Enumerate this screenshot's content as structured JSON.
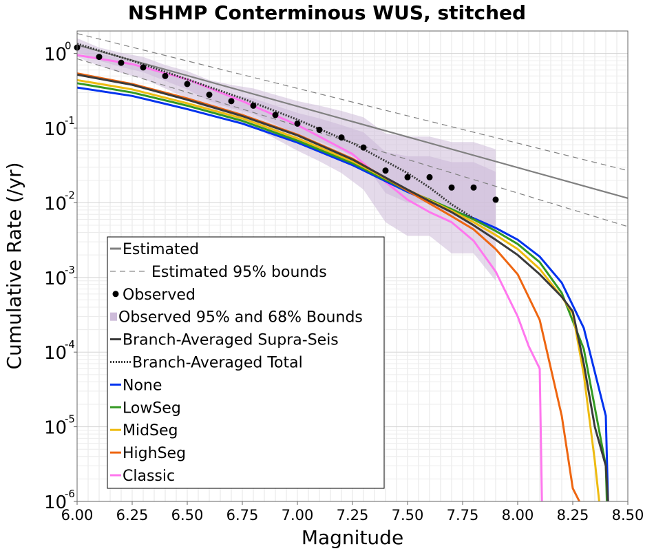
{
  "chart_data": {
    "type": "line",
    "title": "NSHMP Conterminous WUS, stitched",
    "xlabel": "Magnitude",
    "ylabel": "Cumulative Rate (/yr)",
    "xlim": [
      6.0,
      8.5
    ],
    "ylim": [
      1e-06,
      2
    ],
    "y_scale": "log",
    "grid": true,
    "legend_position": "lower-left",
    "x_ticks": [
      "6.00",
      "6.25",
      "6.50",
      "6.75",
      "7.00",
      "7.25",
      "7.50",
      "7.75",
      "8.00",
      "8.25",
      "8.50"
    ],
    "y_ticks": [
      {
        "base": "10",
        "exp": "0"
      },
      {
        "base": "10",
        "exp": "-1"
      },
      {
        "base": "10",
        "exp": "-2"
      },
      {
        "base": "10",
        "exp": "-3"
      },
      {
        "base": "10",
        "exp": "-4"
      },
      {
        "base": "10",
        "exp": "-5"
      },
      {
        "base": "10",
        "exp": "-6"
      }
    ],
    "estimated": {
      "name": "Estimated",
      "color": "#808080",
      "x": [
        6.0,
        8.5
      ],
      "y": [
        1.3,
        0.0115
      ]
    },
    "estimated_bounds": {
      "name": "Estimated 95% bounds",
      "color": "#808080",
      "upper": {
        "x": [
          6.0,
          8.5
        ],
        "y": [
          1.85,
          0.027
        ]
      },
      "lower": {
        "x": [
          6.0,
          8.5
        ],
        "y": [
          0.85,
          0.0048
        ]
      }
    },
    "observed": {
      "name": "Observed",
      "color": "#000000",
      "x": [
        6.0,
        6.1,
        6.2,
        6.3,
        6.4,
        6.5,
        6.6,
        6.7,
        6.8,
        6.9,
        7.0,
        7.1,
        7.2,
        7.3,
        7.4,
        7.5,
        7.6,
        7.7,
        7.8,
        7.9
      ],
      "y": [
        1.2,
        0.9,
        0.75,
        0.65,
        0.5,
        0.39,
        0.28,
        0.23,
        0.2,
        0.15,
        0.115,
        0.095,
        0.075,
        0.055,
        0.027,
        0.022,
        0.022,
        0.016,
        0.016,
        0.011
      ]
    },
    "observed_bounds": {
      "name": "Observed 95% and 68% Bounds",
      "color": "#cdbbd9",
      "x": [
        6.0,
        6.1,
        6.2,
        6.3,
        6.4,
        6.5,
        6.6,
        6.7,
        6.8,
        6.9,
        7.0,
        7.1,
        7.2,
        7.3,
        7.4,
        7.5,
        7.6,
        7.7,
        7.8,
        7.9
      ],
      "lower95": [
        0.9,
        0.68,
        0.55,
        0.46,
        0.34,
        0.25,
        0.17,
        0.13,
        0.105,
        0.072,
        0.05,
        0.036,
        0.025,
        0.015,
        0.0055,
        0.0036,
        0.0036,
        0.0021,
        0.0021,
        0.0009
      ],
      "upper95": [
        1.6,
        1.2,
        1.02,
        0.9,
        0.7,
        0.58,
        0.44,
        0.38,
        0.34,
        0.28,
        0.23,
        0.2,
        0.17,
        0.14,
        0.085,
        0.077,
        0.077,
        0.065,
        0.065,
        0.052
      ],
      "lower68": [
        1.05,
        0.8,
        0.66,
        0.56,
        0.43,
        0.33,
        0.23,
        0.185,
        0.155,
        0.112,
        0.083,
        0.066,
        0.05,
        0.035,
        0.0135,
        0.01,
        0.01,
        0.0066,
        0.0066,
        0.0042
      ],
      "upper68": [
        1.37,
        1.01,
        0.85,
        0.75,
        0.58,
        0.46,
        0.34,
        0.28,
        0.25,
        0.2,
        0.16,
        0.135,
        0.11,
        0.088,
        0.048,
        0.042,
        0.042,
        0.035,
        0.035,
        0.026
      ]
    },
    "series": [
      {
        "name": "Branch-Averaged Supra-Seis",
        "color": "#3a3a3a",
        "style": "solid",
        "x": [
          6.0,
          6.25,
          6.5,
          6.75,
          7.0,
          7.25,
          7.5,
          7.6,
          7.7,
          7.8,
          7.9,
          8.0,
          8.1,
          8.2,
          8.25,
          8.3,
          8.35,
          8.4,
          8.41
        ],
        "y": [
          0.52,
          0.38,
          0.24,
          0.145,
          0.08,
          0.038,
          0.015,
          0.0105,
          0.0075,
          0.005,
          0.0032,
          0.002,
          0.0011,
          0.00055,
          0.00035,
          7e-05,
          1e-05,
          3e-06,
          1e-06
        ]
      },
      {
        "name": "Branch-Averaged Total",
        "color": "#3a3a3a",
        "style": "dotted",
        "x": [
          6.0,
          6.25,
          6.5,
          6.75,
          7.0,
          7.25,
          7.5,
          7.6,
          7.7,
          7.8
        ],
        "y": [
          1.35,
          0.8,
          0.45,
          0.25,
          0.13,
          0.063,
          0.025,
          0.016,
          0.0095,
          0.0062
        ]
      },
      {
        "name": "None",
        "color": "#0033ee",
        "style": "solid",
        "x": [
          6.0,
          6.25,
          6.5,
          6.75,
          7.0,
          7.25,
          7.5,
          7.6,
          7.7,
          7.8,
          7.9,
          8.0,
          8.1,
          8.2,
          8.3,
          8.4,
          8.41
        ],
        "y": [
          0.35,
          0.27,
          0.18,
          0.115,
          0.064,
          0.032,
          0.014,
          0.0105,
          0.008,
          0.0062,
          0.0046,
          0.0032,
          0.0019,
          0.00085,
          0.00021,
          1.4e-05,
          1e-06
        ]
      },
      {
        "name": "LowSeg",
        "color": "#339922",
        "style": "solid",
        "x": [
          6.0,
          6.25,
          6.5,
          6.75,
          7.0,
          7.25,
          7.5,
          7.6,
          7.7,
          7.8,
          7.9,
          8.0,
          8.1,
          8.2,
          8.3,
          8.4,
          8.405
        ],
        "y": [
          0.4,
          0.3,
          0.2,
          0.125,
          0.068,
          0.034,
          0.0145,
          0.011,
          0.0082,
          0.006,
          0.0042,
          0.0028,
          0.0016,
          0.00062,
          0.00011,
          3e-06,
          1e-06
        ]
      },
      {
        "name": "MidSeg",
        "color": "#eebb11",
        "style": "solid",
        "x": [
          6.0,
          6.25,
          6.5,
          6.75,
          7.0,
          7.25,
          7.5,
          7.6,
          7.7,
          7.8,
          7.9,
          8.0,
          8.1,
          8.2,
          8.25,
          8.3,
          8.35,
          8.37
        ],
        "y": [
          0.44,
          0.33,
          0.215,
          0.135,
          0.073,
          0.036,
          0.015,
          0.0108,
          0.0078,
          0.0055,
          0.0037,
          0.0024,
          0.0013,
          0.00055,
          0.00033,
          5e-05,
          3.5e-06,
          1e-06
        ]
      },
      {
        "name": "HighSeg",
        "color": "#ee6611",
        "style": "solid",
        "x": [
          6.0,
          6.25,
          6.5,
          6.75,
          7.0,
          7.25,
          7.5,
          7.6,
          7.7,
          7.8,
          7.9,
          8.0,
          8.1,
          8.2,
          8.25,
          8.28
        ],
        "y": [
          0.54,
          0.39,
          0.25,
          0.15,
          0.082,
          0.039,
          0.0145,
          0.0098,
          0.0066,
          0.0044,
          0.0024,
          0.0011,
          0.00027,
          1.4e-05,
          1.5e-06,
          1e-06
        ]
      },
      {
        "name": "Classic",
        "color": "#ff77ee",
        "style": "solid",
        "x": [
          6.0,
          6.25,
          6.5,
          6.75,
          7.0,
          7.25,
          7.4,
          7.5,
          7.6,
          7.7,
          7.8,
          7.9,
          8.0,
          8.05,
          8.1,
          8.11
        ],
        "y": [
          0.95,
          0.72,
          0.45,
          0.23,
          0.11,
          0.045,
          0.019,
          0.011,
          0.0075,
          0.0055,
          0.0031,
          0.0012,
          0.0003,
          0.00012,
          6e-05,
          1e-06
        ]
      }
    ],
    "legend": [
      {
        "label": "Estimated",
        "kind": "line",
        "color": "#808080",
        "style": "solid"
      },
      {
        "label": "Estimated 95% bounds",
        "kind": "line",
        "color": "#808080",
        "style": "dashed"
      },
      {
        "label": "Observed",
        "kind": "dot",
        "color": "#000000"
      },
      {
        "label": "Observed 95% and 68% Bounds",
        "kind": "box",
        "color": "#cdbbd9"
      },
      {
        "label": "Branch-Averaged Supra-Seis",
        "kind": "line",
        "color": "#3a3a3a",
        "style": "solid"
      },
      {
        "label": "Branch-Averaged Total",
        "kind": "line",
        "color": "#3a3a3a",
        "style": "dotted"
      },
      {
        "label": "None",
        "kind": "line",
        "color": "#0033ee",
        "style": "solid"
      },
      {
        "label": "LowSeg",
        "kind": "line",
        "color": "#339922",
        "style": "solid"
      },
      {
        "label": "MidSeg",
        "kind": "line",
        "color": "#eebb11",
        "style": "solid"
      },
      {
        "label": "HighSeg",
        "kind": "line",
        "color": "#ee6611",
        "style": "solid"
      },
      {
        "label": "Classic",
        "kind": "line",
        "color": "#ff77ee",
        "style": "solid"
      }
    ]
  }
}
